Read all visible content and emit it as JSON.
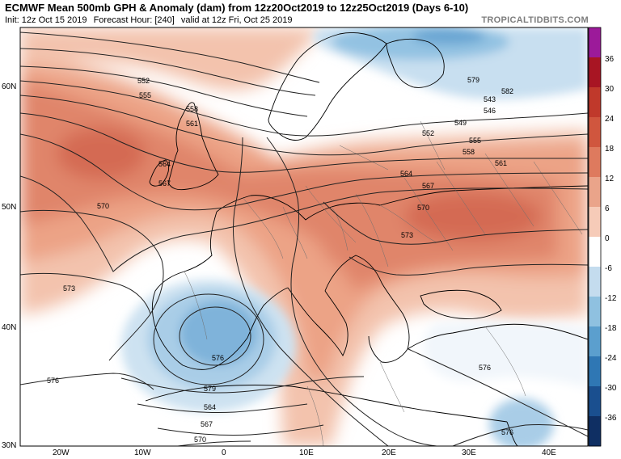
{
  "header": {
    "title": "ECMWF Mean 500mb GPH & Anomaly (dam) from 12z20Oct2019 to 12z25Oct2019 (Days 6-10)",
    "init": "Init: 12z Oct 15 2019",
    "forecast_hour": "Forecast Hour: [240]",
    "valid": "valid at 12z Fri, Oct 25 2019",
    "brand": "TROPICALTIDBITS.COM"
  },
  "map": {
    "lat_labels": [
      "60N",
      "50N",
      "40N",
      "30N"
    ],
    "lon_labels": [
      "20W",
      "10W",
      "0",
      "10E",
      "20E",
      "30E",
      "40E"
    ],
    "contour_labels": [
      "552",
      "555",
      "558",
      "561",
      "564",
      "567",
      "570",
      "573",
      "576",
      "579",
      "582",
      "543",
      "546",
      "549",
      "552",
      "555",
      "558",
      "561",
      "564",
      "567",
      "570",
      "573",
      "576",
      "579",
      "564",
      "567",
      "570",
      "573",
      "576",
      "576"
    ],
    "colors": {
      "ocean": "#ffffff",
      "coast": "#000000",
      "border": "#6e6e6e",
      "contour": "#222222"
    }
  },
  "colorbar": {
    "ticks": [
      "36",
      "30",
      "24",
      "18",
      "12",
      "6",
      "0",
      "-6",
      "-12",
      "-18",
      "-24",
      "-30",
      "-36"
    ],
    "colors": [
      "#9c1a9a",
      "#a81523",
      "#c0392b",
      "#d0563e",
      "#de7a5e",
      "#eaa48a",
      "#f6cbb8",
      "#ffffff",
      "#c4dcee",
      "#8fc1e0",
      "#5b9fce",
      "#2f77b4",
      "#1a4f8f",
      "#0f2f63"
    ]
  }
}
